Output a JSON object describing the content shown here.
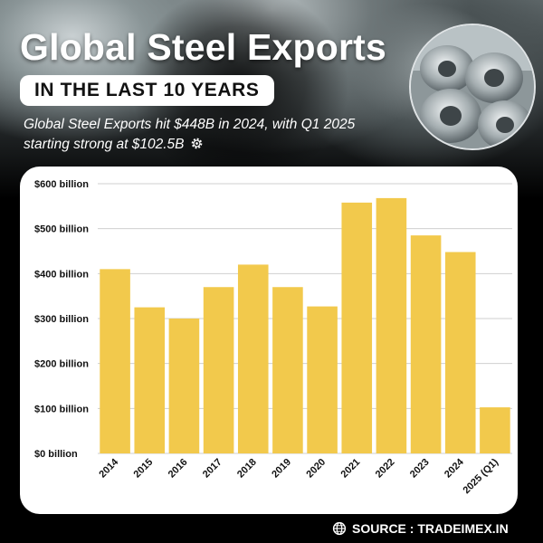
{
  "header": {
    "title": "Global Steel Exports",
    "subtitle": "IN THE LAST 10 YEARS",
    "tagline": "Global Steel Exports hit $448B in 2024, with Q1 2025 starting strong at $102.5B"
  },
  "icons": {
    "tagline_icon": "gear-icon",
    "source_icon": "globe-icon"
  },
  "footer": {
    "source": "SOURCE : TRADEIMEX.IN"
  },
  "colors": {
    "bar": "#F2C94C",
    "background": "#000000",
    "card": "#FFFFFF"
  },
  "chart_data": {
    "type": "bar",
    "categories": [
      "2014",
      "2015",
      "2016",
      "2017",
      "2018",
      "2019",
      "2020",
      "2021",
      "2022",
      "2023",
      "2024",
      "2025 (Q1)"
    ],
    "values": [
      410,
      325,
      300,
      370,
      420,
      370,
      327,
      558,
      568,
      485,
      448,
      102.5
    ],
    "ylim": [
      0,
      600
    ],
    "yticks": [
      0,
      100,
      200,
      300,
      400,
      500,
      600
    ],
    "ytick_labels": [
      "$0 billion",
      "$100 billion",
      "$200 billion",
      "$300 billion",
      "$400 billion",
      "$500 billion",
      "$600 billion"
    ],
    "grid": "horizontal",
    "xlabel": "",
    "ylabel": ""
  }
}
